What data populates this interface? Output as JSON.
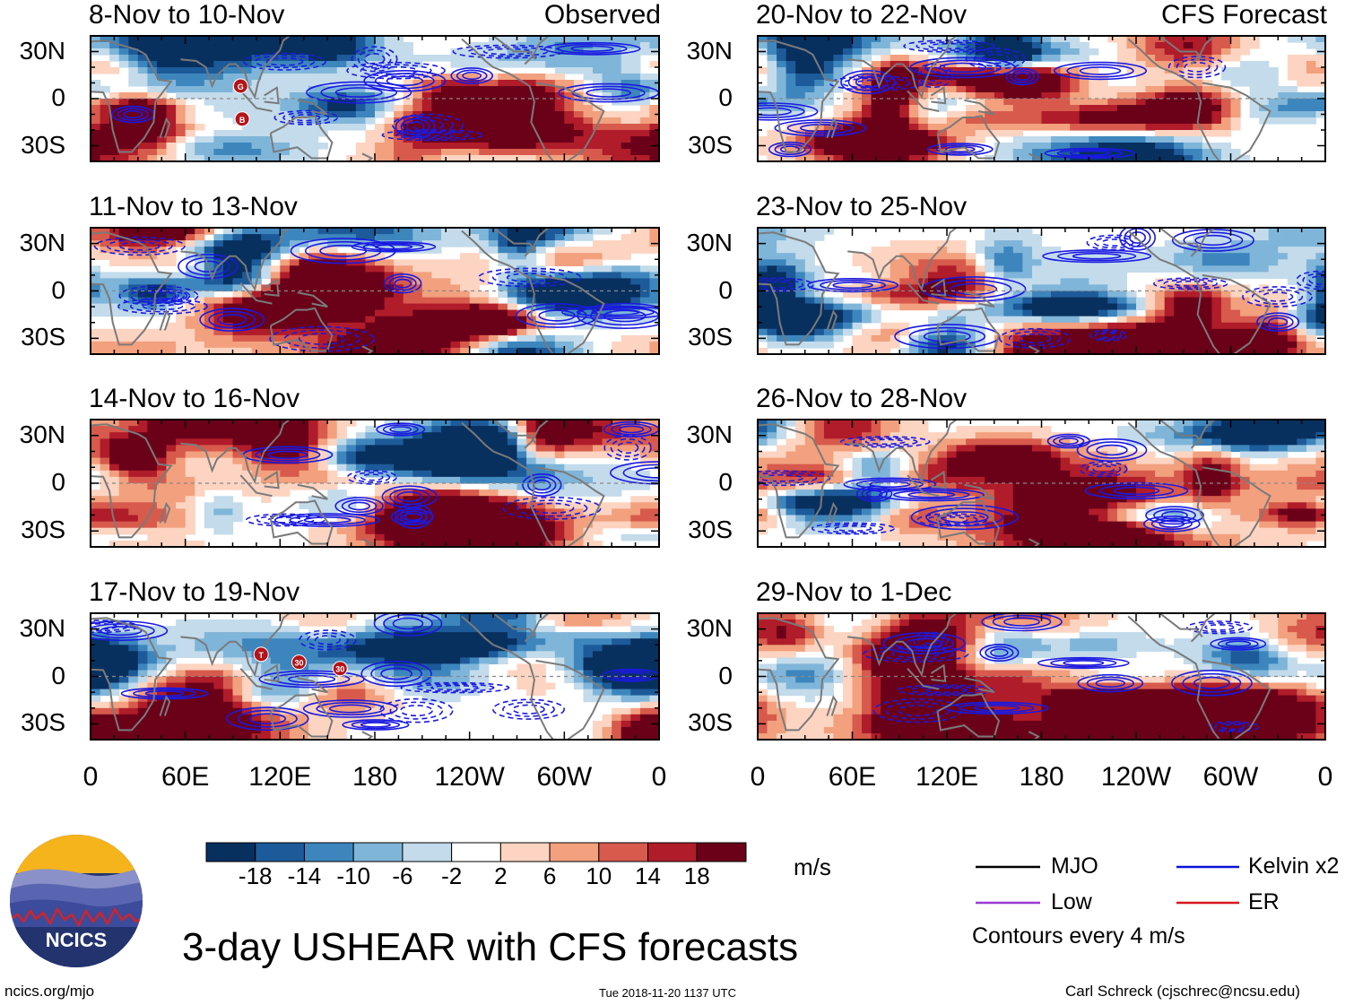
{
  "header": {
    "main_title": "3-day USHEAR with CFS forecasts",
    "site": "ncics.org/mjo",
    "timestamp": "Tue 2018-11-20 1137 UTC",
    "author": "Carl Schreck (cjschrec@ncsu.edu)",
    "logo_text": "NCICS"
  },
  "chart_data": {
    "type": "heatmap",
    "variable": "USHEAR",
    "units": "m/s",
    "column_tags": [
      "Observed",
      "CFS Forecast"
    ],
    "lat_ticks": [
      "30N",
      "0",
      "30S"
    ],
    "lat_values": [
      30,
      0,
      -30
    ],
    "lon_ticks": [
      "0",
      "60E",
      "120E",
      "180",
      "120W",
      "60W",
      "0"
    ],
    "lon_values": [
      0,
      60,
      120,
      180,
      240,
      300,
      360
    ],
    "lat_range": [
      -40,
      40
    ],
    "lon_range": [
      0,
      360
    ],
    "panels": [
      {
        "title": "8-Nov to 10-Nov",
        "source": "Observed",
        "storms": [
          "G",
          "B"
        ]
      },
      {
        "title": "11-Nov to 13-Nov",
        "source": "Observed",
        "storms": []
      },
      {
        "title": "14-Nov to 16-Nov",
        "source": "Observed",
        "storms": []
      },
      {
        "title": "17-Nov to 19-Nov",
        "source": "Observed",
        "storms": [
          "T",
          "30",
          "30"
        ]
      },
      {
        "title": "20-Nov to 22-Nov",
        "source": "CFS Forecast",
        "storms": []
      },
      {
        "title": "23-Nov to 25-Nov",
        "source": "CFS Forecast",
        "storms": []
      },
      {
        "title": "26-Nov to 28-Nov",
        "source": "CFS Forecast",
        "storms": []
      },
      {
        "title": "29-Nov to 1-Dec",
        "source": "CFS Forecast",
        "storms": []
      }
    ],
    "colorbar": {
      "labels": [
        "-18",
        "-14",
        "-10",
        "-6",
        "-2",
        "2",
        "6",
        "10",
        "14",
        "18"
      ],
      "colors": [
        "#08305f",
        "#1d5a99",
        "#3d86bd",
        "#7fb5d9",
        "#c3dbeb",
        "#ffffff",
        "#fcd4c1",
        "#f2a07e",
        "#d75a4c",
        "#b01c2a",
        "#6b0119"
      ],
      "units_label": "m/s"
    },
    "legend": [
      {
        "label": "MJO",
        "color": "#000000"
      },
      {
        "label": "Kelvin x2",
        "color": "#0a14d8"
      },
      {
        "label": "Low",
        "color": "#9a3bd0"
      },
      {
        "label": "ER",
        "color": "#d8141c"
      }
    ],
    "contour_note": "Contours every 4 m/s"
  },
  "colors": {
    "coast": "#7a7a7a",
    "contour": "#1a1ae0",
    "storm": "#b3141a"
  }
}
